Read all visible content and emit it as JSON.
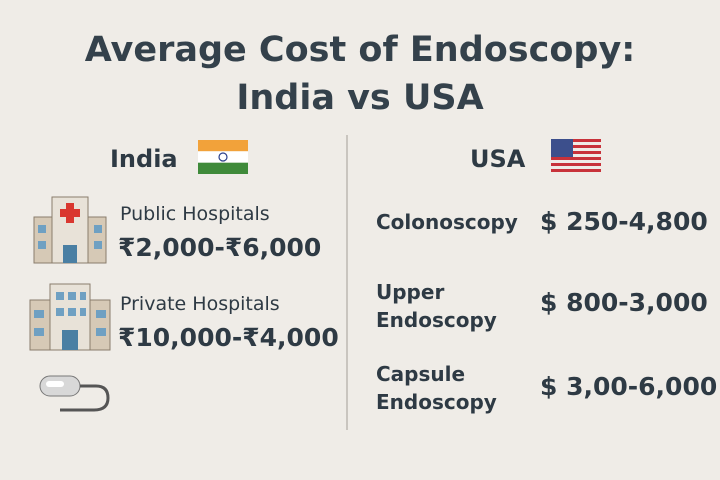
{
  "header": {
    "title_lines": [
      "Average Cost of Endoscopy:",
      "India vs USA"
    ]
  },
  "india": {
    "heading": "India",
    "items": [
      {
        "label": "Public Hospitals",
        "price": "₹2,000-₹6,000"
      },
      {
        "label": "Private Hospitals",
        "price": "₹10,000-₹4,000"
      }
    ]
  },
  "usa": {
    "heading": "USA",
    "items": [
      {
        "label": "Colonoscopy",
        "price": "$ 250-4,800"
      },
      {
        "label": "Upper Endoscopy",
        "price": "$ 800-3,000"
      },
      {
        "label": "Capsule Endoscopy",
        "price": "$ 3,00-6,000"
      }
    ]
  }
}
